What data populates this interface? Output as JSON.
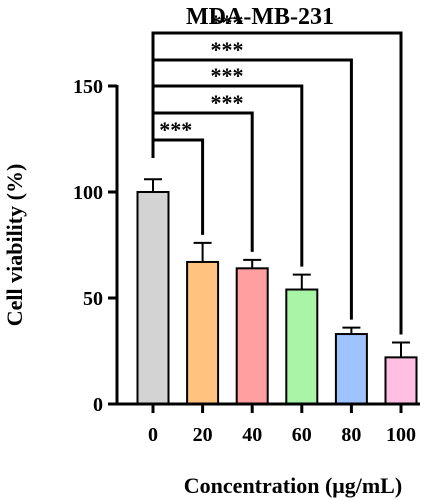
{
  "chart_data": {
    "type": "bar",
    "title": "MDA-MB-231",
    "xlabel": "Concentration (μg/mL)",
    "ylabel": "Cell viability (%)",
    "ylim": [
      0,
      150
    ],
    "yticks": [
      "0",
      "50",
      "100",
      "150"
    ],
    "grid": false,
    "categories": [
      "0",
      "20",
      "40",
      "60",
      "80",
      "100"
    ],
    "values": [
      100,
      67,
      64,
      54,
      33,
      22
    ],
    "errors": [
      6,
      9,
      4,
      7,
      3,
      7
    ],
    "colors": [
      "#d3d3d3",
      "#ffc27f",
      "#ff9f9f",
      "#a8f5a8",
      "#9fc3ff",
      "#ffbfe3"
    ],
    "significance": [
      {
        "from": "0",
        "to": "20",
        "label": "***"
      },
      {
        "from": "0",
        "to": "40",
        "label": "***"
      },
      {
        "from": "0",
        "to": "60",
        "label": "***"
      },
      {
        "from": "0",
        "to": "80",
        "label": "***"
      },
      {
        "from": "0",
        "to": "100",
        "label": "***"
      }
    ]
  }
}
